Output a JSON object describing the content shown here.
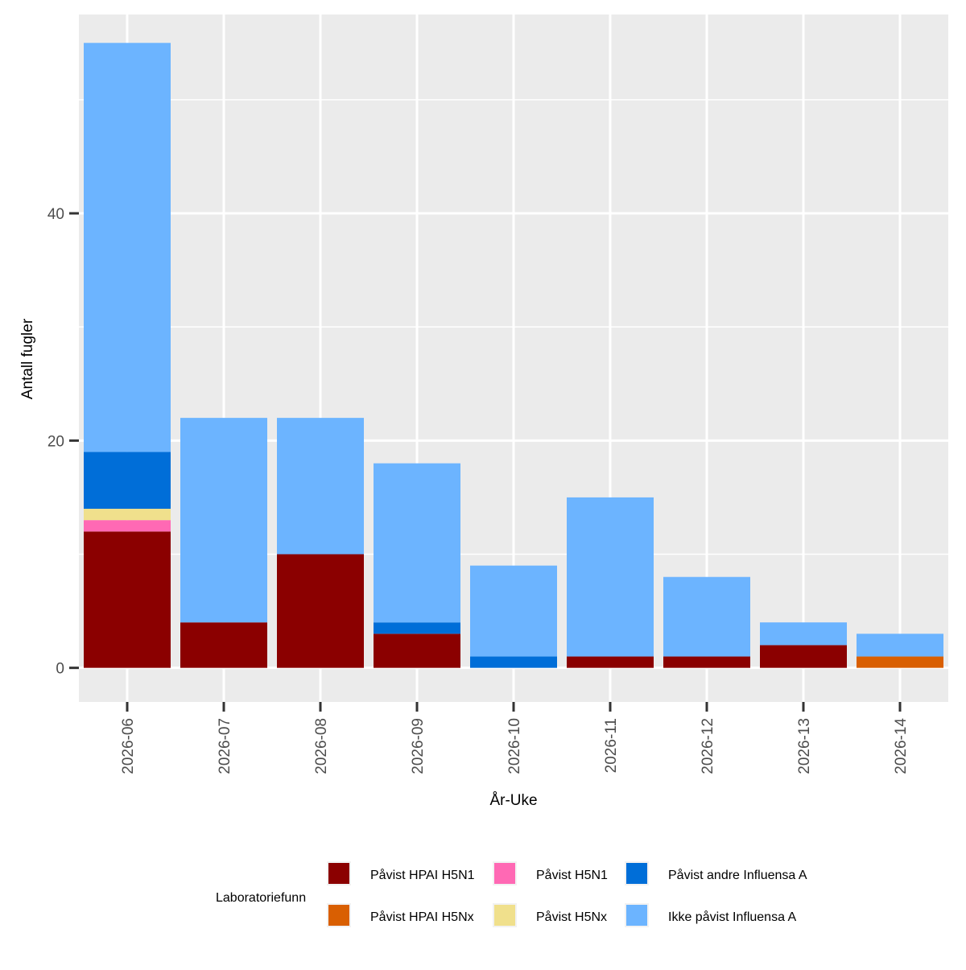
{
  "chart_data": {
    "type": "bar",
    "stacked": true,
    "title": "",
    "xlabel": "År-Uke",
    "ylabel": "Antall fugler",
    "ylim": [
      -3,
      57.5
    ],
    "yticks": [
      0,
      20,
      40
    ],
    "grid": true,
    "categories": [
      "2026-06",
      "2026-07",
      "2026-08",
      "2026-09",
      "2026-10",
      "2026-11",
      "2026-12",
      "2026-13",
      "2026-14"
    ],
    "series": [
      {
        "name": "Påvist HPAI H5N1",
        "color": "#8b0000",
        "values": [
          12,
          4,
          10,
          3,
          0,
          1,
          1,
          2,
          0
        ]
      },
      {
        "name": "Påvist HPAI H5Nx",
        "color": "#d95f02",
        "values": [
          0,
          0,
          0,
          0,
          0,
          0,
          0,
          0,
          1
        ]
      },
      {
        "name": "Påvist H5N1",
        "color": "#ff69b4",
        "values": [
          1,
          0,
          0,
          0,
          0,
          0,
          0,
          0,
          0
        ]
      },
      {
        "name": "Påvist H5Nx",
        "color": "#f0e08c",
        "values": [
          1,
          0,
          0,
          0,
          0,
          0,
          0,
          0,
          0
        ]
      },
      {
        "name": "Påvist andre Influensa A",
        "color": "#006ed8",
        "values": [
          5,
          0,
          0,
          1,
          1,
          0,
          0,
          0,
          0
        ]
      },
      {
        "name": "Ikke påvist Influensa A",
        "color": "#6cb4ff",
        "values": [
          36,
          18,
          12,
          14,
          8,
          14,
          7,
          2,
          2
        ]
      }
    ],
    "legend": {
      "title": "Laboratoriefunn",
      "placement": "bottom"
    }
  }
}
